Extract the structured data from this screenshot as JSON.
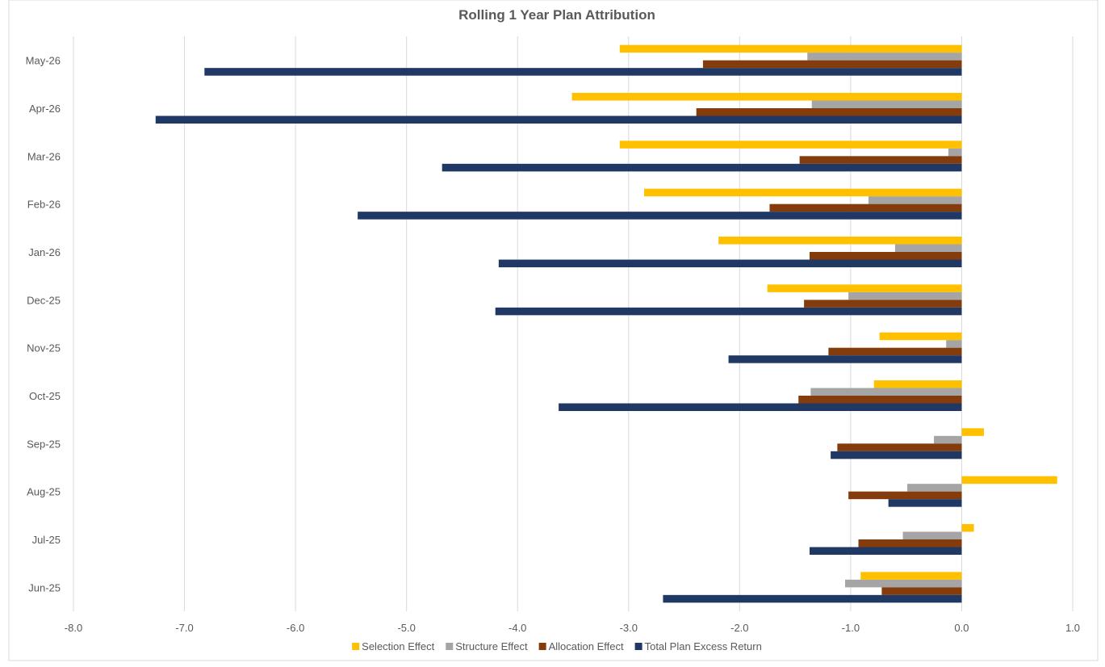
{
  "chart_data": {
    "type": "bar",
    "orientation": "horizontal",
    "title": "Rolling 1 Year Plan Attribution",
    "xlabel": "",
    "ylabel": "",
    "xlim": [
      -8.0,
      1.0
    ],
    "x_ticks": [
      "-8.0",
      "-7.0",
      "-6.0",
      "-5.0",
      "-4.0",
      "-3.0",
      "-2.0",
      "-1.0",
      "0.0",
      "1.0"
    ],
    "grid": "vertical",
    "legend_position": "bottom",
    "categories": [
      "May-26",
      "Apr-26",
      "Mar-26",
      "Feb-26",
      "Jan-26",
      "Dec-25",
      "Nov-25",
      "Oct-25",
      "Sep-25",
      "Aug-25",
      "Jul-25",
      "Jun-25"
    ],
    "series": [
      {
        "name": "Selection Effect",
        "color": "#ffc000",
        "values": [
          -3.08,
          -3.51,
          -3.08,
          -2.86,
          -2.19,
          -1.75,
          -0.74,
          -0.79,
          0.2,
          0.86,
          0.11,
          -0.91
        ]
      },
      {
        "name": "Structure Effect",
        "color": "#a5a5a5",
        "values": [
          -1.39,
          -1.35,
          -0.12,
          -0.84,
          -0.6,
          -1.02,
          -0.14,
          -1.36,
          -0.25,
          -0.49,
          -0.53,
          -1.05
        ]
      },
      {
        "name": "Allocation Effect",
        "color": "#843c0c",
        "values": [
          -2.33,
          -2.39,
          -1.46,
          -1.73,
          -1.37,
          -1.42,
          -1.2,
          -1.47,
          -1.12,
          -1.02,
          -0.93,
          -0.72
        ]
      },
      {
        "name": "Total Plan Excess Return",
        "color": "#203864",
        "values": [
          -6.82,
          -7.26,
          -4.68,
          -5.44,
          -4.17,
          -4.2,
          -2.1,
          -3.63,
          -1.18,
          -0.66,
          -1.37,
          -2.69
        ]
      }
    ]
  }
}
